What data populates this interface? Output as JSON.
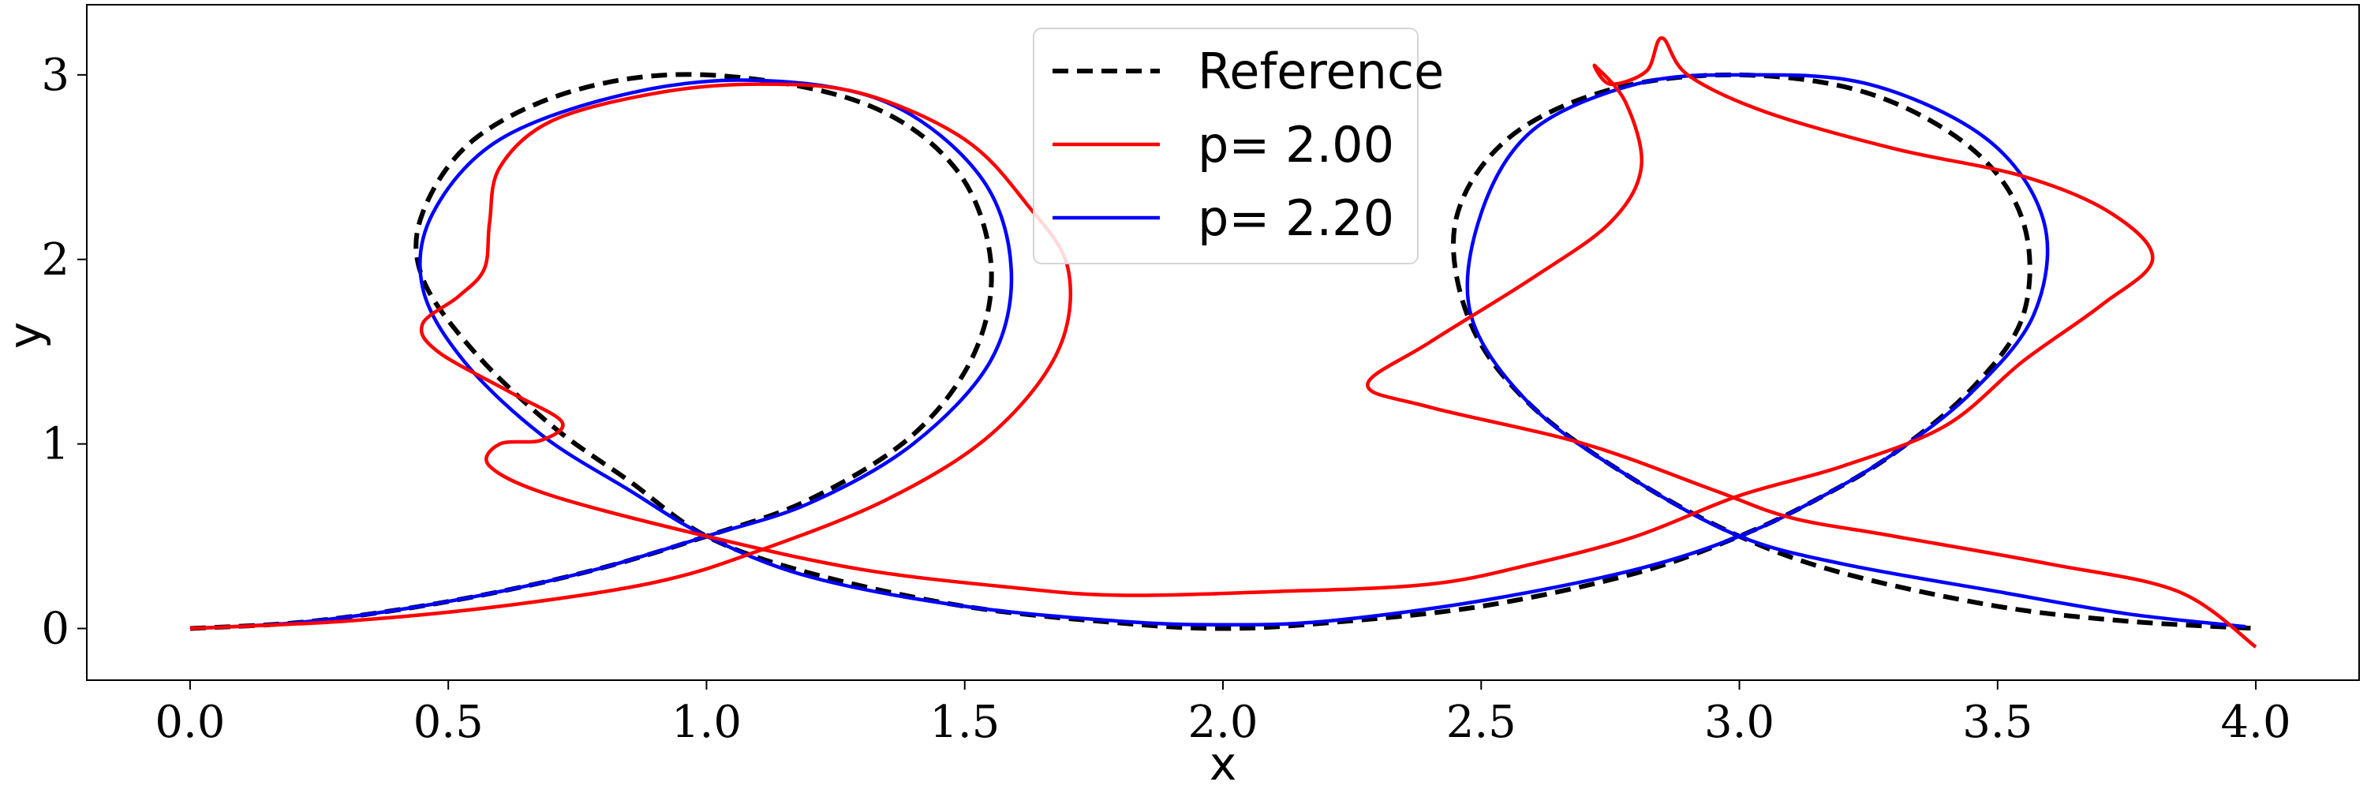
{
  "chart_data": {
    "type": "line",
    "title": "",
    "xlabel": "x",
    "ylabel": "y",
    "xlim": [
      -0.2,
      4.2
    ],
    "ylim": [
      -0.28,
      3.38
    ],
    "xticks": [
      0.0,
      0.5,
      1.0,
      1.5,
      2.0,
      2.5,
      3.0,
      3.5,
      4.0
    ],
    "xtick_labels": [
      "0.0",
      "0.5",
      "1.0",
      "1.5",
      "2.0",
      "2.5",
      "3.0",
      "3.5",
      "4.0"
    ],
    "yticks": [
      0,
      1,
      2,
      3
    ],
    "ytick_labels": [
      "0",
      "1",
      "2",
      "3"
    ],
    "grid": false,
    "legend_position": "top-center",
    "series": [
      {
        "name": "Reference",
        "color": "#000000",
        "style": "dashed",
        "points": [
          [
            0.0,
            0.0
          ],
          [
            0.2,
            0.03
          ],
          [
            0.4,
            0.1
          ],
          [
            0.6,
            0.2
          ],
          [
            0.8,
            0.33
          ],
          [
            1.0,
            0.5
          ],
          [
            1.2,
            0.7
          ],
          [
            1.4,
            1.05
          ],
          [
            1.52,
            1.5
          ],
          [
            1.55,
            2.0
          ],
          [
            1.48,
            2.5
          ],
          [
            1.3,
            2.85
          ],
          [
            1.0,
            3.0
          ],
          [
            0.75,
            2.92
          ],
          [
            0.55,
            2.65
          ],
          [
            0.45,
            2.25
          ],
          [
            0.45,
            1.9
          ],
          [
            0.55,
            1.5
          ],
          [
            0.7,
            1.1
          ],
          [
            0.85,
            0.8
          ],
          [
            1.0,
            0.5
          ],
          [
            1.2,
            0.3
          ],
          [
            1.5,
            0.12
          ],
          [
            1.8,
            0.03
          ],
          [
            2.0,
            0.0
          ],
          [
            2.2,
            0.03
          ],
          [
            2.5,
            0.12
          ],
          [
            2.8,
            0.3
          ],
          [
            3.0,
            0.5
          ],
          [
            3.15,
            0.7
          ],
          [
            3.3,
            0.95
          ],
          [
            3.45,
            1.3
          ],
          [
            3.55,
            1.7
          ],
          [
            3.55,
            2.2
          ],
          [
            3.45,
            2.6
          ],
          [
            3.25,
            2.9
          ],
          [
            3.0,
            3.0
          ],
          [
            2.75,
            2.92
          ],
          [
            2.55,
            2.65
          ],
          [
            2.45,
            2.2
          ],
          [
            2.48,
            1.65
          ],
          [
            2.6,
            1.2
          ],
          [
            2.8,
            0.8
          ],
          [
            3.0,
            0.5
          ],
          [
            3.2,
            0.3
          ],
          [
            3.5,
            0.12
          ],
          [
            3.75,
            0.04
          ],
          [
            4.0,
            0.0
          ]
        ]
      },
      {
        "name": "p= 2.00",
        "color": "#ff0000",
        "style": "solid",
        "points": [
          [
            0.0,
            0.0
          ],
          [
            0.3,
            0.04
          ],
          [
            0.6,
            0.12
          ],
          [
            0.9,
            0.25
          ],
          [
            1.1,
            0.42
          ],
          [
            1.35,
            0.7
          ],
          [
            1.55,
            1.05
          ],
          [
            1.68,
            1.5
          ],
          [
            1.7,
            1.95
          ],
          [
            1.62,
            2.3
          ],
          [
            1.5,
            2.65
          ],
          [
            1.3,
            2.9
          ],
          [
            1.1,
            2.95
          ],
          [
            0.9,
            2.9
          ],
          [
            0.7,
            2.75
          ],
          [
            0.6,
            2.5
          ],
          [
            0.58,
            2.2
          ],
          [
            0.57,
            1.95
          ],
          [
            0.52,
            1.8
          ],
          [
            0.45,
            1.65
          ],
          [
            0.48,
            1.5
          ],
          [
            0.62,
            1.28
          ],
          [
            0.72,
            1.12
          ],
          [
            0.68,
            1.02
          ],
          [
            0.6,
            1.0
          ],
          [
            0.58,
            0.88
          ],
          [
            0.7,
            0.72
          ],
          [
            1.0,
            0.5
          ],
          [
            1.3,
            0.32
          ],
          [
            1.6,
            0.22
          ],
          [
            1.8,
            0.18
          ],
          [
            2.1,
            0.2
          ],
          [
            2.4,
            0.24
          ],
          [
            2.6,
            0.35
          ],
          [
            2.8,
            0.5
          ],
          [
            3.0,
            0.72
          ],
          [
            3.2,
            0.88
          ],
          [
            3.4,
            1.1
          ],
          [
            3.55,
            1.45
          ],
          [
            3.7,
            1.75
          ],
          [
            3.8,
            2.0
          ],
          [
            3.72,
            2.25
          ],
          [
            3.55,
            2.45
          ],
          [
            3.3,
            2.6
          ],
          [
            3.05,
            2.8
          ],
          [
            2.9,
            3.0
          ],
          [
            2.85,
            3.2
          ],
          [
            2.82,
            3.02
          ],
          [
            2.75,
            2.95
          ],
          [
            2.72,
            3.05
          ],
          [
            2.78,
            2.85
          ],
          [
            2.81,
            2.5
          ],
          [
            2.75,
            2.2
          ],
          [
            2.6,
            1.9
          ],
          [
            2.4,
            1.55
          ],
          [
            2.28,
            1.32
          ],
          [
            2.4,
            1.2
          ],
          [
            2.7,
            1.0
          ],
          [
            2.95,
            0.75
          ],
          [
            3.1,
            0.6
          ],
          [
            3.3,
            0.5
          ],
          [
            3.6,
            0.35
          ],
          [
            3.85,
            0.2
          ],
          [
            4.0,
            -0.1
          ]
        ]
      },
      {
        "name": "p= 2.20",
        "color": "#0000ff",
        "style": "solid",
        "points": [
          [
            0.0,
            0.0
          ],
          [
            0.2,
            0.03
          ],
          [
            0.4,
            0.1
          ],
          [
            0.6,
            0.2
          ],
          [
            0.8,
            0.33
          ],
          [
            1.0,
            0.5
          ],
          [
            1.2,
            0.68
          ],
          [
            1.4,
            1.0
          ],
          [
            1.55,
            1.45
          ],
          [
            1.59,
            1.95
          ],
          [
            1.53,
            2.45
          ],
          [
            1.35,
            2.85
          ],
          [
            1.1,
            2.97
          ],
          [
            0.85,
            2.9
          ],
          [
            0.6,
            2.65
          ],
          [
            0.47,
            2.25
          ],
          [
            0.45,
            1.85
          ],
          [
            0.53,
            1.45
          ],
          [
            0.68,
            1.05
          ],
          [
            0.85,
            0.75
          ],
          [
            1.0,
            0.5
          ],
          [
            1.2,
            0.28
          ],
          [
            1.5,
            0.12
          ],
          [
            1.8,
            0.04
          ],
          [
            2.0,
            0.02
          ],
          [
            2.2,
            0.04
          ],
          [
            2.5,
            0.15
          ],
          [
            2.8,
            0.32
          ],
          [
            3.0,
            0.5
          ],
          [
            3.15,
            0.7
          ],
          [
            3.3,
            0.95
          ],
          [
            3.45,
            1.28
          ],
          [
            3.57,
            1.7
          ],
          [
            3.59,
            2.2
          ],
          [
            3.48,
            2.65
          ],
          [
            3.25,
            2.95
          ],
          [
            3.0,
            3.0
          ],
          [
            2.8,
            2.95
          ],
          [
            2.6,
            2.7
          ],
          [
            2.5,
            2.25
          ],
          [
            2.48,
            1.7
          ],
          [
            2.6,
            1.2
          ],
          [
            2.8,
            0.8
          ],
          [
            3.0,
            0.5
          ],
          [
            3.2,
            0.35
          ],
          [
            3.5,
            0.2
          ],
          [
            3.75,
            0.08
          ],
          [
            3.98,
            0.01
          ]
        ]
      }
    ]
  }
}
